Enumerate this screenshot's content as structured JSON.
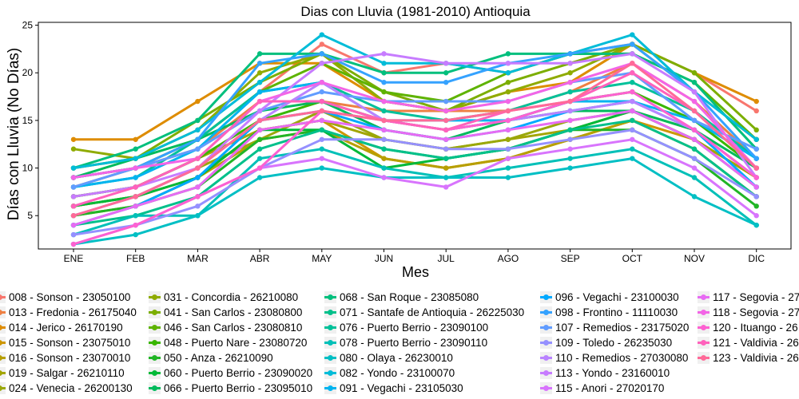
{
  "chart_data": {
    "type": "line",
    "title": "Dias con Lluvia (1981-2010)  Antioquia",
    "xlabel": "Mes",
    "ylabel": "Días con Lluvia (No Días)",
    "categories": [
      "ENE",
      "FEB",
      "MAR",
      "ABR",
      "MAY",
      "JUN",
      "JUL",
      "AGO",
      "SEP",
      "OCT",
      "NOV",
      "DIC"
    ],
    "y_ticks": [
      5,
      10,
      15,
      20,
      25
    ],
    "ylim": [
      1.5,
      25.3
    ],
    "grid": false,
    "legend_position": "bottom",
    "series": [
      {
        "name": "008 - Sonson - 23050100",
        "color": "#f8766d",
        "values": [
          9,
          10,
          13,
          18,
          23,
          20,
          21,
          20,
          22,
          23,
          20,
          16
        ]
      },
      {
        "name": "013 - Fredonia - 26175040",
        "color": "#ee8043",
        "values": [
          8,
          10,
          12,
          17,
          17,
          16,
          16,
          16,
          18,
          21,
          17,
          11
        ]
      },
      {
        "name": "014 - Jerico - 26170190",
        "color": "#de8c00",
        "values": [
          13,
          13,
          17,
          21,
          21,
          17,
          16,
          18,
          19,
          23,
          20,
          17
        ]
      },
      {
        "name": "015 - Sonson - 23075010",
        "color": "#cd9600",
        "values": [
          6,
          7,
          9,
          14,
          15,
          11,
          10,
          11,
          13,
          15,
          13,
          9
        ]
      },
      {
        "name": "016 - Sonson - 23070010",
        "color": "#b79f00",
        "values": [
          5,
          6,
          9,
          13,
          14,
          11,
          10,
          11,
          13,
          15,
          12,
          7
        ]
      },
      {
        "name": "019 - Salgar - 26210110",
        "color": "#a3a500",
        "values": [
          7,
          8,
          11,
          14,
          15,
          13,
          12,
          13,
          14,
          16,
          13,
          9
        ]
      },
      {
        "name": "024 - Venecia - 26200130",
        "color": "#9aa80b",
        "values": [
          6,
          7,
          10,
          13,
          16,
          13,
          12,
          13,
          15,
          16,
          14,
          9
        ]
      },
      {
        "name": "031 - Concordia - 26210080",
        "color": "#8fab00",
        "values": [
          12,
          11,
          14,
          20,
          22,
          17,
          16,
          18,
          20,
          23,
          18,
          13
        ]
      },
      {
        "name": "041 - San Carlos - 23080800",
        "color": "#7cae00",
        "values": [
          10,
          11,
          15,
          19,
          22,
          18,
          16,
          19,
          21,
          23,
          20,
          14
        ]
      },
      {
        "name": "046 - San Carlos - 23080810",
        "color": "#5eb300",
        "values": [
          9,
          10,
          13,
          18,
          21,
          18,
          17,
          20,
          22,
          22,
          19,
          13
        ]
      },
      {
        "name": "048 - Puerto Nare - 23080720",
        "color": "#39b600",
        "values": [
          7,
          8,
          11,
          15,
          17,
          15,
          14,
          15,
          17,
          18,
          15,
          10
        ]
      },
      {
        "name": "050 - Anza - 26210090",
        "color": "#21b526",
        "values": [
          5,
          6,
          8,
          13,
          14,
          12,
          11,
          12,
          14,
          14,
          11,
          6
        ]
      },
      {
        "name": "060 - Puerto Berrio - 23090020",
        "color": "#00b938",
        "values": [
          6,
          7,
          9,
          14,
          14,
          10,
          11,
          12,
          14,
          16,
          13,
          8
        ]
      },
      {
        "name": "066 - Puerto Berrio - 23095010",
        "color": "#00ba5c",
        "values": [
          9,
          11,
          13,
          16,
          17,
          14,
          13,
          15,
          16,
          16,
          14,
          10
        ]
      },
      {
        "name": "068 - San Roque - 23085080",
        "color": "#00bf7d",
        "values": [
          10,
          12,
          15,
          22,
          22,
          20,
          20,
          22,
          22,
          22,
          19,
          12
        ]
      },
      {
        "name": "071 - Santafe de Antioquia - 26225030",
        "color": "#00c08b",
        "values": [
          4,
          5,
          7,
          12,
          14,
          12,
          11,
          12,
          14,
          15,
          12,
          7
        ]
      },
      {
        "name": "076 - Puerto Berrio - 23090100",
        "color": "#00c19a",
        "values": [
          8,
          9,
          13,
          18,
          19,
          16,
          15,
          16,
          18,
          19,
          16,
          11
        ]
      },
      {
        "name": "078 - Puerto Berrio - 23090110",
        "color": "#00c0b8",
        "values": [
          3,
          5,
          5,
          11,
          12,
          10,
          9,
          10,
          11,
          12,
          9,
          4
        ]
      },
      {
        "name": "080 - Olaya - 26230010",
        "color": "#00bfc4",
        "values": [
          2,
          3,
          5,
          9,
          10,
          9,
          9,
          9,
          10,
          11,
          7,
          4
        ]
      },
      {
        "name": "082 - Yondo - 23100070",
        "color": "#00bcd8",
        "values": [
          10,
          11,
          14,
          19,
          24,
          21,
          21,
          20,
          22,
          24,
          18,
          13
        ]
      },
      {
        "name": "091 - Vegachi - 23105030",
        "color": "#00b4ef",
        "values": [
          8,
          9,
          12,
          18,
          19,
          15,
          15,
          15,
          17,
          17,
          15,
          11
        ]
      },
      {
        "name": "096 - Vegachi - 23100030",
        "color": "#00a9ff",
        "values": [
          4,
          6,
          9,
          15,
          16,
          14,
          13,
          14,
          16,
          17,
          14,
          8
        ]
      },
      {
        "name": "098 - Frontino - 11110030",
        "color": "#35a2ff",
        "values": [
          9,
          10,
          13,
          21,
          22,
          19,
          19,
          21,
          22,
          23,
          18,
          11
        ]
      },
      {
        "name": "107 - Remedios - 23175020",
        "color": "#619cff",
        "values": [
          8,
          10,
          12,
          16,
          18,
          17,
          17,
          17,
          19,
          20,
          15,
          12
        ]
      },
      {
        "name": "109 - Toledo - 26235030",
        "color": "#9590ff",
        "values": [
          3,
          4,
          6,
          10,
          13,
          13,
          12,
          12,
          13,
          14,
          11,
          7
        ]
      },
      {
        "name": "110 - Remedios - 27030080",
        "color": "#b983ff",
        "values": [
          5,
          7,
          10,
          15,
          19,
          15,
          14,
          15,
          16,
          17,
          14,
          9
        ]
      },
      {
        "name": "113 - Yondo - 23160010",
        "color": "#c77cff",
        "values": [
          7,
          8,
          10,
          16,
          21,
          22,
          21,
          21,
          21,
          22,
          18,
          9
        ]
      },
      {
        "name": "115 - Anori - 27020170",
        "color": "#d874fd",
        "values": [
          2,
          4,
          7,
          10,
          11,
          9,
          8,
          11,
          12,
          13,
          10,
          5
        ]
      },
      {
        "name": "117 - Segovia - 27",
        "color": "#e76bf3",
        "values": [
          4,
          6,
          8,
          14,
          15,
          14,
          13,
          14,
          15,
          16,
          13,
          8
        ]
      },
      {
        "name": "118 - Segovia - 27",
        "color": "#f365e6",
        "values": [
          9,
          10,
          11,
          17,
          19,
          17,
          16,
          17,
          19,
          21,
          17,
          10
        ]
      },
      {
        "name": "120 - Ituango - 26",
        "color": "#fd61d1",
        "values": [
          2,
          4,
          7,
          10,
          16,
          15,
          14,
          15,
          17,
          18,
          14,
          9
        ]
      },
      {
        "name": "121 - Valdivia - 26",
        "color": "#ff62bc",
        "values": [
          6,
          8,
          11,
          17,
          17,
          15,
          14,
          16,
          17,
          20,
          16,
          10
        ]
      },
      {
        "name": "123 - Valdivia - 26",
        "color": "#ff6a98",
        "values": [
          5,
          7,
          10,
          15,
          16,
          15,
          15,
          16,
          17,
          21,
          16,
          10
        ]
      }
    ]
  }
}
